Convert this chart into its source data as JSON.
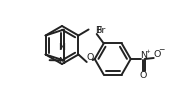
{
  "bg_color": "#ffffff",
  "line_color": "#222222",
  "line_width": 1.4,
  "font_size": 6.8,
  "figsize": [
    1.82,
    0.93
  ],
  "dpi": 100,
  "xlim": [
    0,
    182
  ],
  "ylim": [
    0,
    93
  ]
}
